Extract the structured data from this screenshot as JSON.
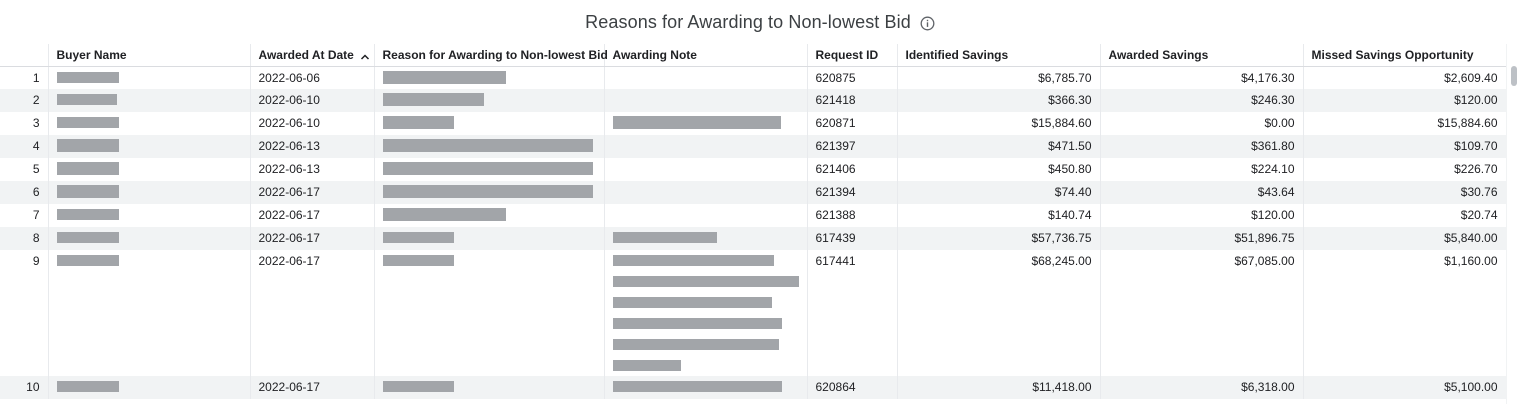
{
  "title": "Reasons for Awarding to Non-lowest Bid",
  "icons": {
    "info": "info-icon",
    "sort": "sort-ascending-icon"
  },
  "colors": {
    "redaction": "#a2a5a9",
    "alt_row": "#f1f3f4"
  },
  "columns": [
    "",
    "Buyer Name",
    "Awarded At Date",
    "Reason for Awarding to Non-lowest Bid",
    "Awarding Note",
    "Request ID",
    "Identified Savings",
    "Awarded Savings",
    "Missed Savings Opportunity"
  ],
  "rows": [
    {
      "index": "1",
      "date": "2022-06-06",
      "request_id": "620875",
      "identified": "$6,785.70",
      "awarded": "$4,176.30",
      "missed": "$2,609.40"
    },
    {
      "index": "2",
      "date": "2022-06-10",
      "request_id": "621418",
      "identified": "$366.30",
      "awarded": "$246.30",
      "missed": "$120.00"
    },
    {
      "index": "3",
      "date": "2022-06-10",
      "request_id": "620871",
      "identified": "$15,884.60",
      "awarded": "$0.00",
      "missed": "$15,884.60"
    },
    {
      "index": "4",
      "date": "2022-06-13",
      "request_id": "621397",
      "identified": "$471.50",
      "awarded": "$361.80",
      "missed": "$109.70"
    },
    {
      "index": "5",
      "date": "2022-06-13",
      "request_id": "621406",
      "identified": "$450.80",
      "awarded": "$224.10",
      "missed": "$226.70"
    },
    {
      "index": "6",
      "date": "2022-06-17",
      "request_id": "621394",
      "identified": "$74.40",
      "awarded": "$43.64",
      "missed": "$30.76"
    },
    {
      "index": "7",
      "date": "2022-06-17",
      "request_id": "621388",
      "identified": "$140.74",
      "awarded": "$120.00",
      "missed": "$20.74"
    },
    {
      "index": "8",
      "date": "2022-06-17",
      "request_id": "617439",
      "identified": "$57,736.75",
      "awarded": "$51,896.75",
      "missed": "$5,840.00"
    },
    {
      "index": "9",
      "date": "2022-06-17",
      "request_id": "617441",
      "identified": "$68,245.00",
      "awarded": "$67,085.00",
      "missed": "$1,160.00"
    },
    {
      "index": "10",
      "date": "2022-06-17",
      "request_id": "620864",
      "identified": "$11,418.00",
      "awarded": "$6,318.00",
      "missed": "$5,100.00"
    }
  ]
}
